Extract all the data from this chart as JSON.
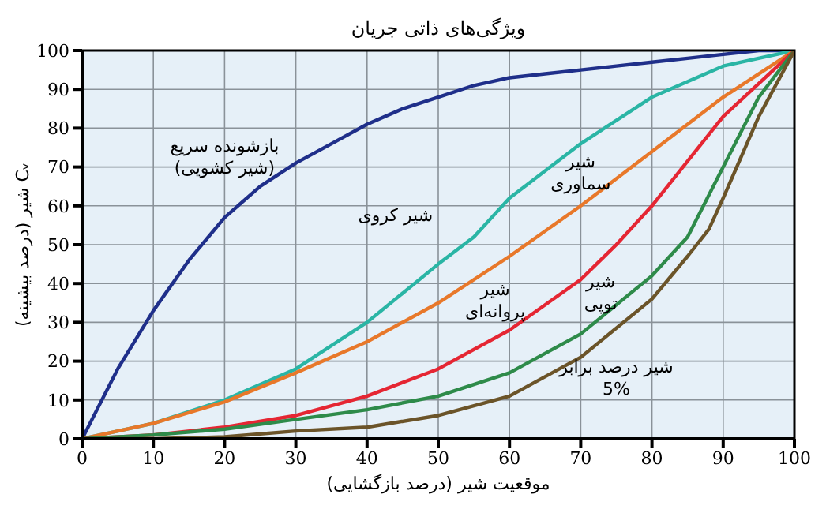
{
  "chart_data": {
    "type": "line",
    "title": "ویژگی‌های ذاتی جریان",
    "xlabel": "موقعیت شیر (درصد بازگشایی)",
    "ylabel": "Cᵥ شیر (درصد بیشینه)",
    "xlim": [
      0,
      100
    ],
    "ylim": [
      0,
      100
    ],
    "xticks": [
      0,
      10,
      20,
      30,
      40,
      50,
      60,
      70,
      80,
      90,
      100
    ],
    "yticks": [
      0,
      10,
      20,
      30,
      40,
      50,
      60,
      70,
      80,
      90,
      100
    ],
    "grid": true,
    "legend": false,
    "marker": "none",
    "line_style": "solid",
    "series": [
      {
        "name": "بازشونده سریع\n(شیر کشویی)",
        "color": "#1f2f8a",
        "x": [
          0,
          5,
          10,
          15,
          20,
          25,
          30,
          35,
          40,
          45,
          50,
          55,
          60,
          65,
          70,
          75,
          80,
          85,
          90,
          95,
          100
        ],
        "values": [
          0,
          18,
          33,
          46,
          57,
          65,
          71,
          76,
          81,
          85,
          88,
          91,
          93,
          94,
          95,
          96,
          97,
          98,
          99,
          100,
          100
        ]
      },
      {
        "name": "شیر کروی",
        "color": "#2ab5a5",
        "x": [
          0,
          10,
          20,
          30,
          40,
          50,
          55,
          60,
          70,
          80,
          90,
          100
        ],
        "values": [
          0,
          4,
          10,
          18,
          30,
          45,
          52,
          62,
          76,
          88,
          96,
          100
        ]
      },
      {
        "name": "شیر\nسماوری",
        "color": "#e8782a",
        "x": [
          0,
          10,
          20,
          30,
          40,
          50,
          60,
          70,
          80,
          90,
          100
        ],
        "values": [
          0,
          4,
          9.5,
          17,
          25,
          35,
          47,
          60,
          74,
          88,
          100
        ]
      },
      {
        "name": "شیر\nپروانه‌ای",
        "color": "#e52633",
        "x": [
          0,
          10,
          20,
          30,
          40,
          50,
          60,
          70,
          75,
          80,
          90,
          100
        ],
        "values": [
          0,
          1,
          3,
          6,
          11,
          18,
          28,
          41,
          50,
          60,
          83,
          100
        ]
      },
      {
        "name": "شیر\nتوپی",
        "color": "#2e8b4a",
        "x": [
          0,
          10,
          20,
          30,
          40,
          50,
          60,
          70,
          80,
          85,
          90,
          95,
          100
        ],
        "values": [
          0,
          1,
          2.5,
          5,
          7.5,
          11,
          17,
          27,
          42,
          52,
          70,
          88,
          100
        ]
      },
      {
        "name": "شیر درصد برابر\n5%",
        "color": "#6b5429",
        "x": [
          0,
          10,
          20,
          30,
          40,
          50,
          60,
          70,
          80,
          85,
          88,
          90,
          95,
          100
        ],
        "values": [
          0,
          0,
          0.5,
          2,
          3,
          6,
          11,
          21,
          36,
          47,
          54,
          62,
          83,
          100
        ]
      }
    ]
  }
}
